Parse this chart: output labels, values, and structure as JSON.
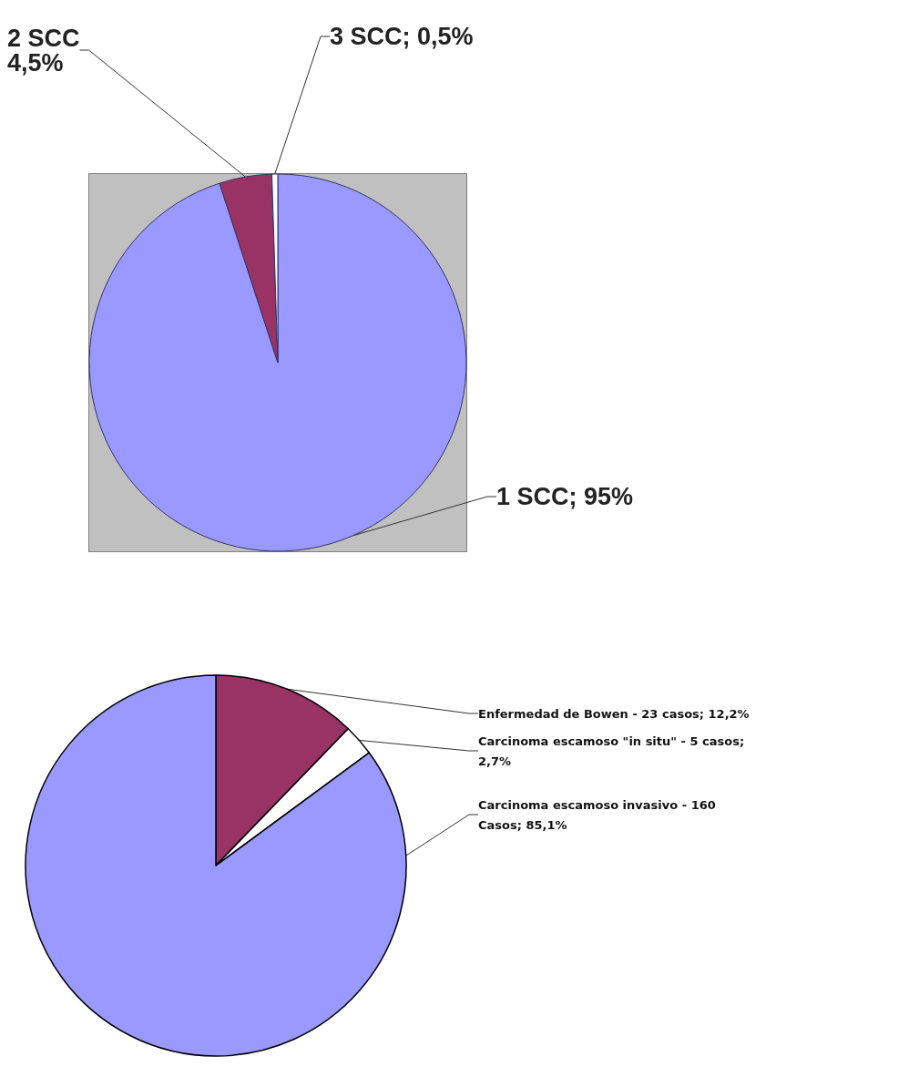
{
  "chart_data": [
    {
      "type": "pie",
      "categories": [
        "1 SCC",
        "2 SCC",
        "3 SCC"
      ],
      "values": [
        95,
        4.5,
        0.5
      ],
      "colors": [
        "#9999ff",
        "#993366",
        "#ffffff"
      ],
      "value_labels": [
        "95%",
        "4,5%",
        "0,5%"
      ],
      "legend": false
    },
    {
      "type": "pie",
      "categories": [
        "Enfermedad de Bowen",
        "Carcinoma escamoso \"in situ\"",
        "Carcinoma escamoso invasivo"
      ],
      "values": [
        23,
        5,
        160
      ],
      "colors": [
        "#993366",
        "#ffffff",
        "#9999ff"
      ],
      "value_labels": [
        "23 casos; 12,2%",
        "5 casos; 2,7%",
        "160 Casos; 85,1%"
      ],
      "legend": false
    }
  ]
}
